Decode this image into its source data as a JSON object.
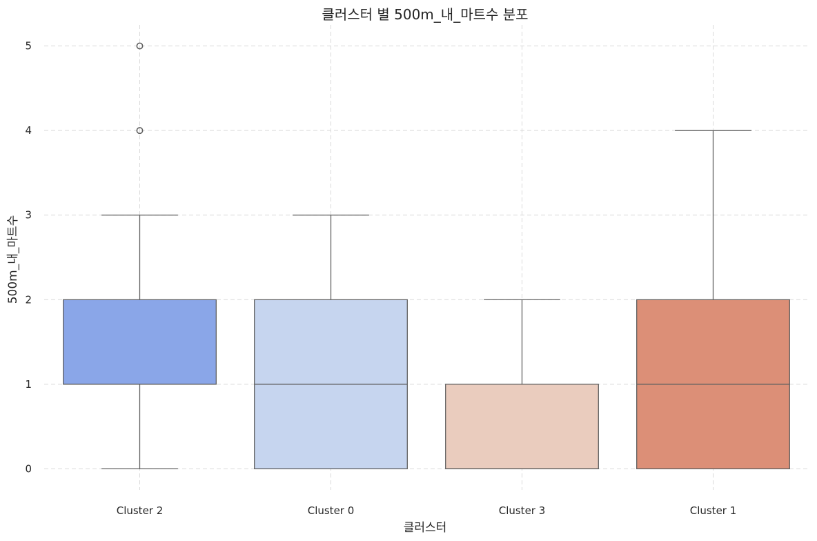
{
  "chart_data": {
    "type": "box",
    "title": "클러스터 별 500m_내_마트수 분포",
    "xlabel": "클러스터",
    "ylabel": "500m_내_마트수",
    "categories": [
      "Cluster 2",
      "Cluster 0",
      "Cluster 3",
      "Cluster 1"
    ],
    "yticks": [
      "0",
      "1",
      "2",
      "3",
      "4",
      "5"
    ],
    "ylim": [
      -0.25,
      5.25
    ],
    "grid": true,
    "boxes": [
      {
        "category": "Cluster 2",
        "whisker_low": 0,
        "q1": 1,
        "median": 1,
        "q3": 2,
        "whisker_high": 3,
        "outliers": [
          4,
          5
        ],
        "color": "#8aa6e8"
      },
      {
        "category": "Cluster 0",
        "whisker_low": 0,
        "q1": 0,
        "median": 1,
        "q3": 2,
        "whisker_high": 3,
        "outliers": [],
        "color": "#c6d5ef"
      },
      {
        "category": "Cluster 3",
        "whisker_low": 0,
        "q1": 0,
        "median": 0,
        "q3": 1,
        "whisker_high": 2,
        "outliers": [],
        "color": "#eaccbe"
      },
      {
        "category": "Cluster 1",
        "whisker_low": 0,
        "q1": 0,
        "median": 1,
        "q3": 2,
        "whisker_high": 4,
        "outliers": [],
        "color": "#dc8f77"
      }
    ],
    "line_color": "#606060",
    "grid_color": "#d9d9d9"
  }
}
